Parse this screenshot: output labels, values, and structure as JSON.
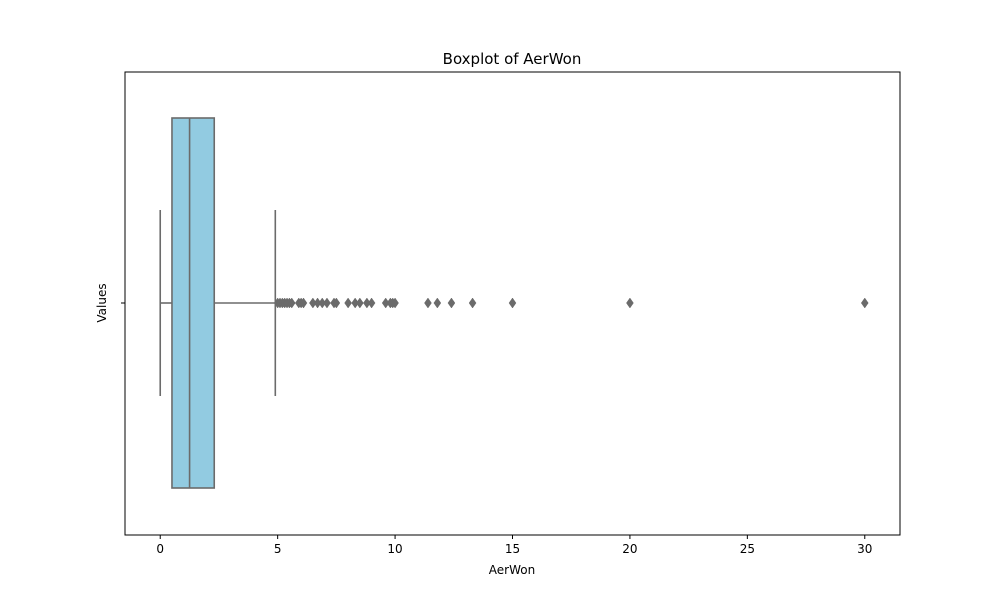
{
  "chart_data": {
    "type": "boxplot",
    "orientation": "horizontal",
    "title": "Boxplot of AerWon",
    "xlabel": "AerWon",
    "ylabel": "Values",
    "xlim": [
      -1.5,
      31.5
    ],
    "xticks": [
      0,
      5,
      10,
      15,
      20,
      25,
      30
    ],
    "xtick_labels": [
      "0",
      "5",
      "10",
      "15",
      "20",
      "25",
      "30"
    ],
    "grid": false,
    "series": [
      {
        "whisker_low": 0.0,
        "q1": 0.5,
        "median": 1.25,
        "q3": 2.3,
        "whisker_high": 4.9,
        "outliers": [
          5.0,
          5.1,
          5.2,
          5.3,
          5.4,
          5.5,
          5.6,
          5.9,
          6.0,
          6.1,
          6.5,
          6.7,
          6.9,
          7.1,
          7.4,
          7.5,
          8.0,
          8.3,
          8.5,
          8.8,
          9.0,
          9.6,
          9.8,
          9.9,
          10.0,
          11.4,
          11.8,
          12.4,
          13.3,
          15.0,
          20.0,
          30.0
        ]
      }
    ],
    "colors": {
      "box_fill": "#92cbe1",
      "line": "#6b6b6b",
      "axes": "#000000"
    }
  }
}
